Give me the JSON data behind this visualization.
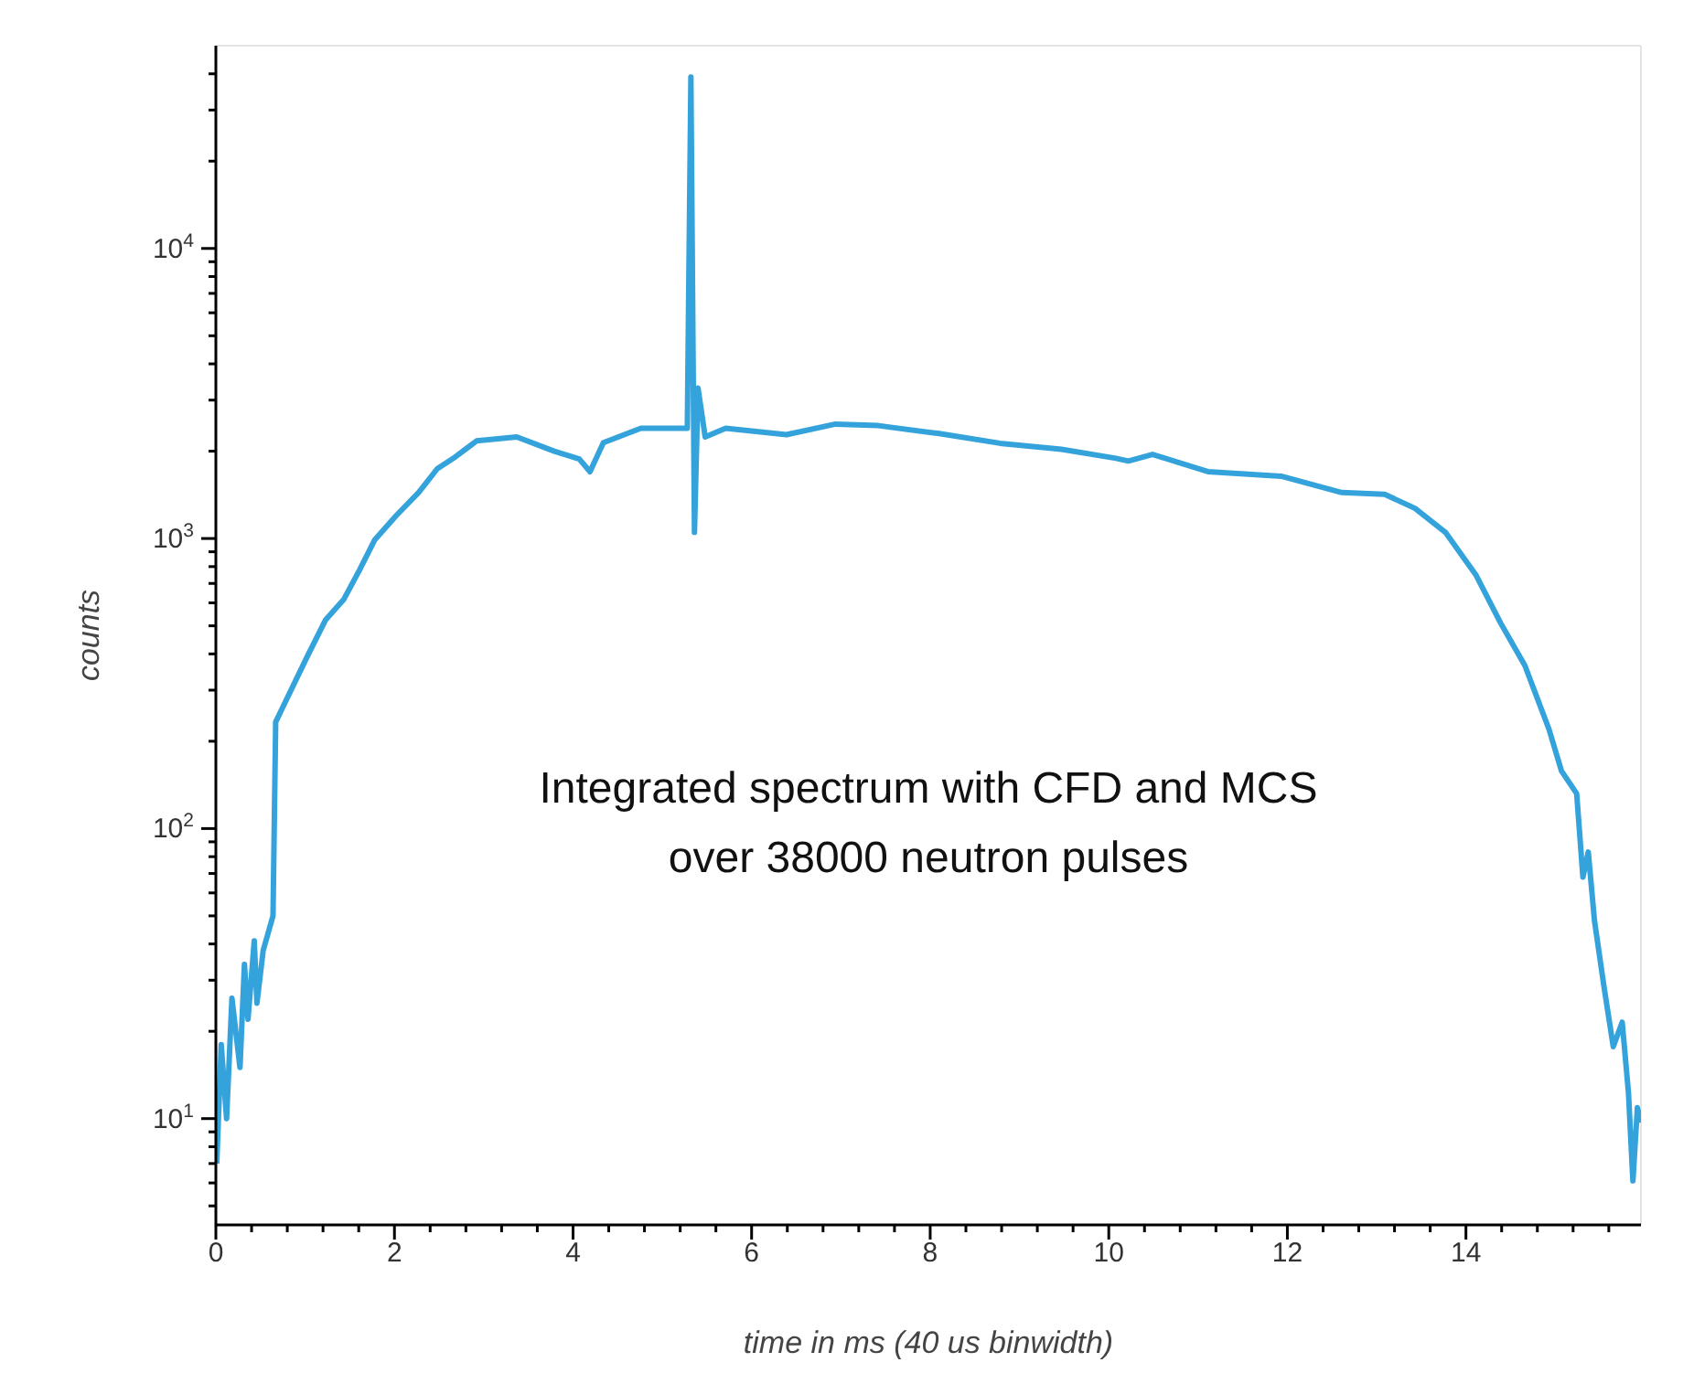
{
  "chart_data": {
    "type": "line",
    "xlabel": "time in ms (40 us binwidth)",
    "ylabel": "counts",
    "log": "y",
    "marker": "none",
    "line_style": "solid",
    "xlim": [
      0,
      15.96
    ],
    "xticks": [
      0,
      {
        "value": 0.4,
        "label": null
      },
      {
        "value": 0.8,
        "label": null
      },
      {
        "value": 1.2,
        "label": null
      },
      {
        "value": 1.6,
        "label": null
      },
      2,
      {
        "value": 2.4,
        "label": null
      },
      {
        "value": 2.8,
        "label": null
      },
      {
        "value": 3.2,
        "label": null
      },
      {
        "value": 3.6,
        "label": null
      },
      4,
      {
        "value": 4.4,
        "label": null
      },
      {
        "value": 4.8,
        "label": null
      },
      {
        "value": 5.2,
        "label": null
      },
      {
        "value": 5.6,
        "label": null
      },
      6,
      {
        "value": 6.4,
        "label": null
      },
      {
        "value": 6.8,
        "label": null
      },
      {
        "value": 7.2,
        "label": null
      },
      {
        "value": 7.6,
        "label": null
      },
      8,
      {
        "value": 8.4,
        "label": null
      },
      {
        "value": 8.8,
        "label": null
      },
      {
        "value": 9.2,
        "label": null
      },
      {
        "value": 9.6,
        "label": null
      },
      10,
      {
        "value": 10.4,
        "label": null
      },
      {
        "value": 10.8,
        "label": null
      },
      {
        "value": 11.2,
        "label": null
      },
      {
        "value": 11.6,
        "label": null
      },
      12,
      {
        "value": 12.4,
        "label": null
      },
      {
        "value": 12.8,
        "label": null
      },
      {
        "value": 13.2,
        "label": null
      },
      {
        "value": 13.6,
        "label": null
      },
      14,
      {
        "value": 14.4,
        "label": null
      },
      {
        "value": 14.8,
        "label": null
      },
      {
        "value": 15.2,
        "label": null
      },
      {
        "value": 15.6,
        "label": null
      }
    ],
    "ylim": [
      4.3,
      50000
    ],
    "yticks": [
      {
        "value": 5,
        "label": null
      },
      {
        "value": 6,
        "label": null
      },
      {
        "value": 7,
        "label": null
      },
      {
        "value": 8,
        "label": null
      },
      {
        "value": 9,
        "label": null
      },
      {
        "value": 10,
        "label": "10$^{1}$"
      },
      {
        "value": 20,
        "label": null
      },
      {
        "value": 30,
        "label": null
      },
      {
        "value": 40,
        "label": null
      },
      {
        "value": 50,
        "label": null
      },
      {
        "value": 60,
        "label": null
      },
      {
        "value": 70,
        "label": null
      },
      {
        "value": 80,
        "label": null
      },
      {
        "value": 90,
        "label": null
      },
      {
        "value": 100,
        "label": "10$^{2}$"
      },
      {
        "value": 200,
        "label": null
      },
      {
        "value": 300,
        "label": null
      },
      {
        "value": 400,
        "label": null
      },
      {
        "value": 500,
        "label": null
      },
      {
        "value": 600,
        "label": null
      },
      {
        "value": 700,
        "label": null
      },
      {
        "value": 800,
        "label": null
      },
      {
        "value": 900,
        "label": null
      },
      {
        "value": 1000,
        "label": "10$^{3}$"
      },
      {
        "value": 2000,
        "label": null
      },
      {
        "value": 3000,
        "label": null
      },
      {
        "value": 4000,
        "label": null
      },
      {
        "value": 5000,
        "label": null
      },
      {
        "value": 6000,
        "label": null
      },
      {
        "value": 7000,
        "label": null
      },
      {
        "value": 8000,
        "label": null
      },
      {
        "value": 9000,
        "label": null
      },
      {
        "value": 10000,
        "label": "10$^{4}$"
      },
      {
        "value": 20000,
        "label": null
      },
      {
        "value": 30000,
        "label": null
      },
      {
        "value": 40000,
        "label": null
      }
    ],
    "annotations": [
      "Integrated spectrum with CFD and MCS\nover 38000 neutron pulses"
    ],
    "series": [
      {
        "color": "#34a3dc",
        "x": [
          0.01,
          0.06,
          0.12,
          0.18,
          0.27,
          0.32,
          0.36,
          0.43,
          0.46,
          0.53,
          0.64,
          0.67,
          0.77,
          1.02,
          1.23,
          1.43,
          1.61,
          1.78,
          2.02,
          2.27,
          2.48,
          2.68,
          2.92,
          3.37,
          3.79,
          4.07,
          4.19,
          4.34,
          4.76,
          5.24,
          5.28,
          5.32,
          5.36,
          5.4,
          5.48,
          5.71,
          6.39,
          6.94,
          7.42,
          8.1,
          8.78,
          9.47,
          10.08,
          10.22,
          10.49,
          11.11,
          11.93,
          12.61,
          13.09,
          13.43,
          13.77,
          14.11,
          14.39,
          14.66,
          14.93,
          15.07,
          15.24,
          15.31,
          15.37,
          15.44,
          15.55,
          15.65,
          15.75,
          15.82,
          15.87,
          15.92,
          15.96
        ],
        "values": [
          7,
          18,
          10,
          26,
          15,
          34,
          22,
          41,
          25,
          38,
          50,
          233,
          270,
          390,
          525,
          615,
          780,
          990,
          1200,
          1440,
          1740,
          1910,
          2170,
          2240,
          2000,
          1880,
          1700,
          2140,
          2400,
          2400,
          2400,
          39000,
          1050,
          3300,
          2240,
          2400,
          2280,
          2480,
          2450,
          2300,
          2130,
          2030,
          1890,
          1850,
          1950,
          1700,
          1640,
          1440,
          1420,
          1270,
          1050,
          750,
          510,
          365,
          220,
          158,
          132,
          68,
          83,
          48,
          28,
          17.7,
          21.5,
          12.3,
          6.1,
          10.9,
          9.7
        ]
      }
    ]
  }
}
